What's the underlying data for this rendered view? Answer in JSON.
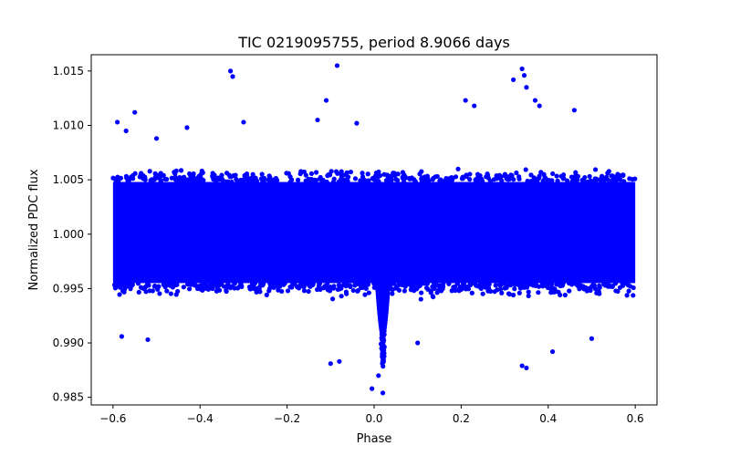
{
  "chart_data": {
    "type": "scatter",
    "title": "TIC 0219095755, period 8.9066 days",
    "xlabel": "Phase",
    "ylabel": "Normalized PDC flux",
    "xlim": [
      -0.65,
      0.65
    ],
    "ylim": [
      0.9843,
      1.0165
    ],
    "xticks": [
      -0.6,
      -0.4,
      -0.2,
      0.0,
      0.2,
      0.4,
      0.6
    ],
    "xtick_labels": [
      "−0.6",
      "−0.4",
      "−0.2",
      "0.0",
      "0.2",
      "0.4",
      "0.6"
    ],
    "yticks": [
      0.985,
      0.99,
      0.995,
      1.0,
      1.005,
      1.01,
      1.015
    ],
    "ytick_labels": [
      "0.985",
      "0.990",
      "0.995",
      "1.000",
      "1.005",
      "1.010",
      "1.015"
    ],
    "marker_color": "#0000ff",
    "grid": false,
    "series": [
      {
        "name": "phase-folded light curve",
        "baseline_flux": 1.0,
        "noise_band": [
          0.9955,
          1.0048
        ],
        "transit_center_phase": 0.02,
        "transit_min_flux": 0.9875,
        "outliers": [
          {
            "x": -0.59,
            "y": 1.0103
          },
          {
            "x": -0.57,
            "y": 1.0095
          },
          {
            "x": -0.55,
            "y": 1.0112
          },
          {
            "x": -0.5,
            "y": 1.0088
          },
          {
            "x": -0.43,
            "y": 1.0098
          },
          {
            "x": -0.33,
            "y": 1.015
          },
          {
            "x": -0.325,
            "y": 1.0145
          },
          {
            "x": -0.3,
            "y": 1.0103
          },
          {
            "x": -0.13,
            "y": 1.0105
          },
          {
            "x": -0.11,
            "y": 1.0123
          },
          {
            "x": -0.085,
            "y": 1.0155
          },
          {
            "x": -0.04,
            "y": 1.0102
          },
          {
            "x": 0.21,
            "y": 1.0123
          },
          {
            "x": 0.23,
            "y": 1.0118
          },
          {
            "x": 0.32,
            "y": 1.0142
          },
          {
            "x": 0.34,
            "y": 1.0152
          },
          {
            "x": 0.345,
            "y": 1.0146
          },
          {
            "x": 0.35,
            "y": 1.0135
          },
          {
            "x": 0.37,
            "y": 1.0123
          },
          {
            "x": 0.38,
            "y": 1.0118
          },
          {
            "x": 0.46,
            "y": 1.0114
          },
          {
            "x": -0.58,
            "y": 0.9906
          },
          {
            "x": -0.52,
            "y": 0.9903
          },
          {
            "x": -0.1,
            "y": 0.9881
          },
          {
            "x": -0.08,
            "y": 0.9883
          },
          {
            "x": 0.1,
            "y": 0.99
          },
          {
            "x": 0.34,
            "y": 0.9879
          },
          {
            "x": 0.35,
            "y": 0.9877
          },
          {
            "x": 0.41,
            "y": 0.9892
          },
          {
            "x": 0.5,
            "y": 0.9904
          },
          {
            "x": -0.005,
            "y": 0.9858
          },
          {
            "x": 0.02,
            "y": 0.9854
          },
          {
            "x": 0.01,
            "y": 0.987
          }
        ]
      }
    ]
  }
}
